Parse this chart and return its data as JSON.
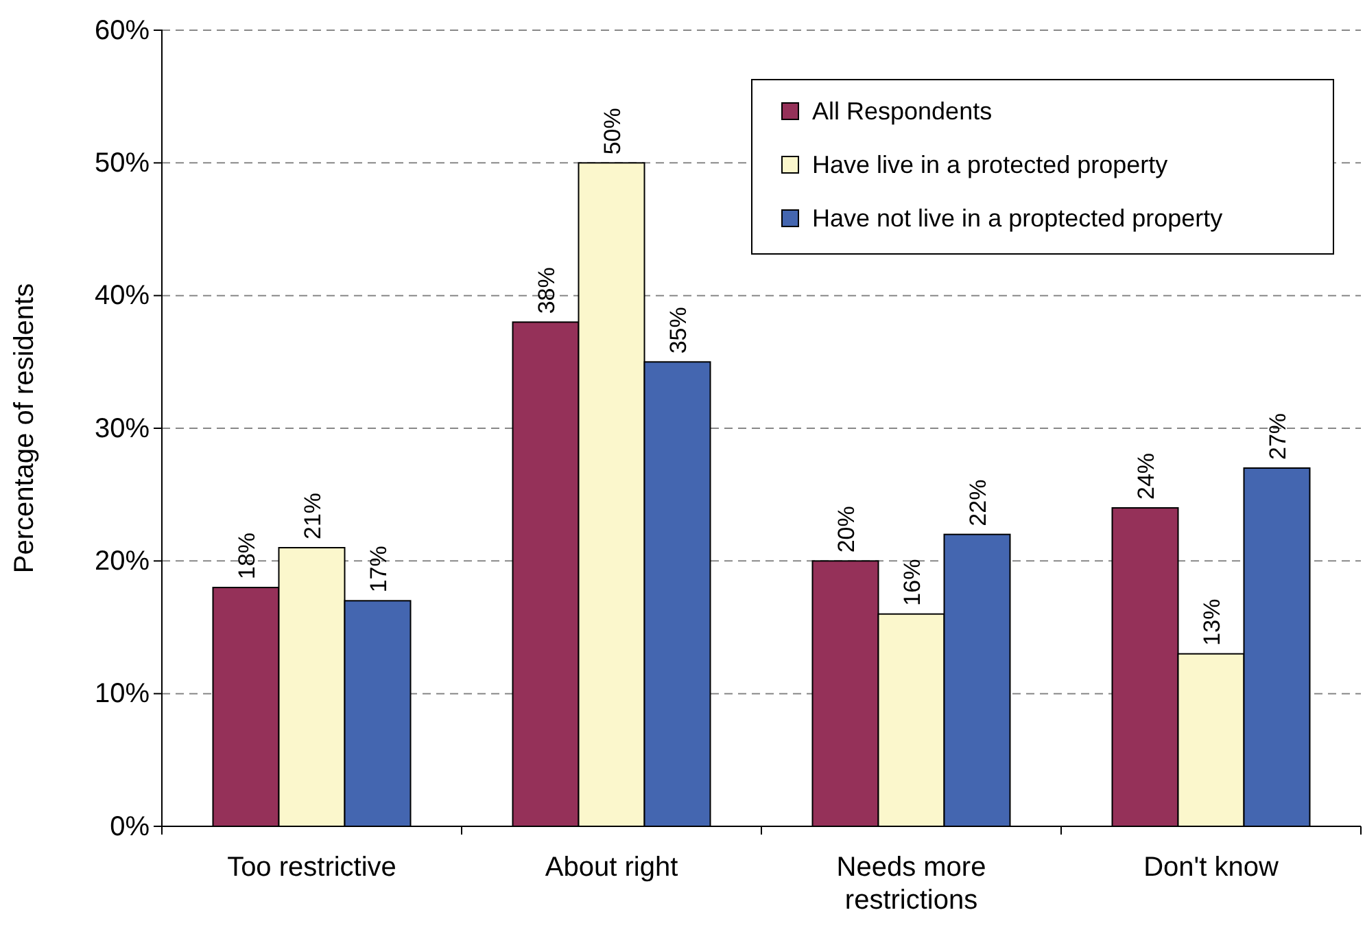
{
  "chart_data": {
    "type": "bar",
    "ylabel": "Percentage of residents",
    "categories": [
      "Too restrictive",
      "About right",
      "Needs more restrictions",
      "Don't know"
    ],
    "series": [
      {
        "name": "All Respondents",
        "color": "#953159",
        "values": [
          18,
          38,
          20,
          24
        ],
        "value_labels": [
          "18%",
          "38%",
          "20%",
          "24%"
        ]
      },
      {
        "name": "Have live in a protected property",
        "color": "#fbf7cc",
        "values": [
          21,
          50,
          16,
          13
        ],
        "value_labels": [
          "21%",
          "50%",
          "16%",
          "13%"
        ]
      },
      {
        "name": "Have not live in a proptected property",
        "color": "#4466b0",
        "values": [
          17,
          35,
          22,
          27
        ],
        "value_labels": [
          "17%",
          "35%",
          "22%",
          "27%"
        ]
      }
    ],
    "ylim": [
      0,
      60
    ],
    "yticks": [
      {
        "value": 0,
        "label": "0%"
      },
      {
        "value": 10,
        "label": "10%"
      },
      {
        "value": 20,
        "label": "20%"
      },
      {
        "value": 30,
        "label": "30%"
      },
      {
        "value": 40,
        "label": "40%"
      },
      {
        "value": 50,
        "label": "50%"
      },
      {
        "value": 60,
        "label": "60%"
      }
    ],
    "grid": "y",
    "legend": "top right"
  }
}
